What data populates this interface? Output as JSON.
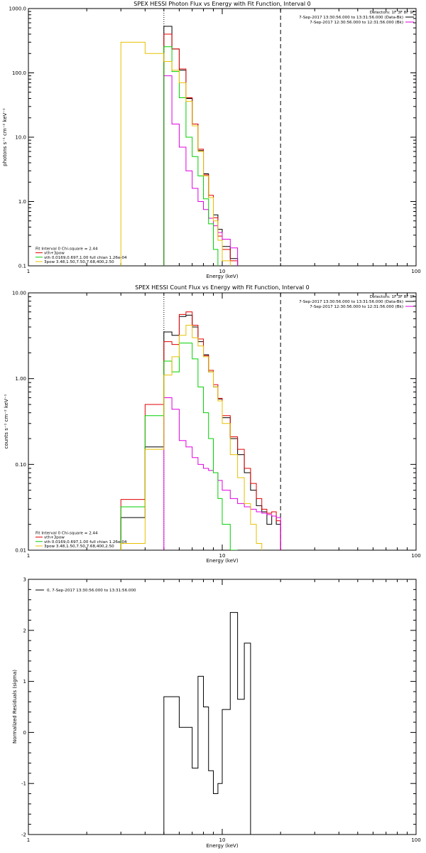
{
  "figure": {
    "colors": {
      "black": "#000000",
      "red": "#e00000",
      "magenta": "#e000e0",
      "green": "#00d000",
      "yellow": "#e8c000"
    }
  },
  "chart_data": [
    {
      "type": "step",
      "title": "SPEX HESSI Photon Flux vs Energy with Fit Function, Interval 0",
      "xlabel": "Energy (keV)",
      "ylabel": "photons s⁻¹ cm⁻² keV⁻¹",
      "xscale": "log",
      "yscale": "log",
      "xlim": [
        1,
        100
      ],
      "ylim": [
        0.1,
        1000
      ],
      "xticks": [
        1,
        10,
        100
      ],
      "xtick_labels": [
        "1",
        "10",
        "100"
      ],
      "yticks": [
        0.1,
        1,
        10,
        100,
        1000
      ],
      "ytick_labels": [
        "0.1",
        "1.0",
        "10.0",
        "100.0",
        "1000.0"
      ],
      "edges": [
        3,
        4,
        5,
        5.5,
        6,
        6.5,
        7,
        7.5,
        8,
        8.5,
        9,
        9.5,
        10,
        11,
        12,
        13,
        14,
        15,
        16,
        17,
        18,
        19,
        20
      ],
      "series": [
        {
          "color": "black",
          "values": [
            null,
            null,
            530,
            235,
            110,
            40,
            16,
            6.2,
            2.7,
            1.15,
            0.62,
            0.37,
            0.2,
            0.13
          ]
        },
        {
          "color": "red",
          "values": [
            null,
            null,
            400,
            235,
            115,
            41,
            16,
            6.5,
            2.6,
            1.25,
            0.56,
            0.29,
            0.18,
            0.12
          ]
        },
        {
          "color": "magenta",
          "values": [
            null,
            null,
            90,
            16,
            7,
            3,
            1.6,
            1,
            0.75,
            0.55,
            0.42,
            0.33,
            0.26,
            0.19
          ]
        },
        {
          "color": "green",
          "values": [
            null,
            null,
            255,
            105,
            41,
            10,
            5,
            2.5,
            1.1,
            0.45,
            0.18,
            0.08
          ]
        },
        {
          "color": "yellow",
          "values": [
            300,
            200,
            150,
            110,
            70,
            36,
            15,
            6,
            2.5,
            1.15,
            0.5,
            0.25,
            0.12,
            0.08
          ]
        }
      ],
      "vlines": [
        {
          "x": 5,
          "style": "dotted"
        },
        {
          "x": 20,
          "style": "dashed"
        }
      ],
      "legend_top": {
        "placement": "top-right",
        "header": "Detectors: 1F 3F 8F 9F",
        "entries": [
          {
            "label": "7-Sep-2017 13:30:56.000 to 13:31:56.000 (Data-Bk)",
            "color": "black"
          },
          {
            "label": "7-Sep-2017 12:30:56.000 to 12:31:56.000 (Bk)",
            "color": "magenta"
          }
        ]
      },
      "legend_bottom": {
        "placement": "bottom-left",
        "header": "Fit Interval 0   Chi-square = 2.44",
        "entries": [
          {
            "label": "vth+3pow",
            "color": "red"
          },
          {
            "label": "vth 0.0169,0.697,1.00  full chian 1.26e-04",
            "color": "green"
          },
          {
            "label": "3pow 3.48,1.50,7.50,7.68,400,2.50",
            "color": "yellow"
          }
        ]
      }
    },
    {
      "type": "step",
      "title": "SPEX HESSI Count Flux vs Energy with Fit Function, Interval 0",
      "xlabel": "Energy (keV)",
      "ylabel": "counts s⁻¹ cm⁻² keV⁻¹",
      "xscale": "log",
      "yscale": "log",
      "xlim": [
        1,
        100
      ],
      "ylim": [
        0.01,
        10
      ],
      "xticks": [
        1,
        10,
        100
      ],
      "xtick_labels": [
        "1",
        "10",
        "100"
      ],
      "yticks": [
        0.01,
        0.1,
        1,
        10
      ],
      "ytick_labels": [
        "0.01",
        "0.10",
        "1.00",
        "10.00"
      ],
      "edges": [
        3,
        4,
        5,
        5.5,
        6,
        6.5,
        7,
        7.5,
        8,
        8.5,
        9,
        9.5,
        10,
        11,
        12,
        13,
        14,
        15,
        16,
        17,
        18,
        19,
        20
      ],
      "series": [
        {
          "color": "black",
          "values": [
            0.024,
            0.16,
            3.5,
            3.2,
            5.3,
            5.5,
            4,
            2.7,
            1.9,
            1.2,
            0.8,
            0.58,
            0.35,
            0.2,
            0.13,
            0.08,
            0.05,
            0.033,
            0.028,
            0.02,
            0.025,
            0.02
          ]
        },
        {
          "color": "red",
          "values": [
            0.039,
            0.5,
            2.7,
            2.5,
            5.6,
            6.0,
            4.2,
            2.9,
            1.85,
            1.25,
            0.85,
            0.59,
            0.37,
            0.21,
            0.15,
            0.09,
            0.06,
            0.04,
            0.03,
            0.027,
            0.028,
            0.022
          ]
        },
        {
          "color": "magenta",
          "values": [
            null,
            null,
            0.6,
            0.44,
            0.19,
            0.16,
            0.12,
            0.1,
            0.09,
            0.085,
            0.08,
            0.065,
            0.05,
            0.04,
            0.035,
            0.032,
            0.03,
            0.028,
            0.027,
            0.026,
            0.025,
            0.024
          ]
        },
        {
          "color": "green",
          "values": [
            0.032,
            0.37,
            1.6,
            1.2,
            2.6,
            2.6,
            1.7,
            0.8,
            0.4,
            0.2,
            0.08,
            0.04,
            0.02,
            0.01
          ]
        },
        {
          "color": "yellow",
          "values": [
            0.012,
            0.15,
            1.1,
            1.8,
            3.2,
            4.2,
            3,
            2.4,
            1.8,
            1.2,
            0.8,
            0.55,
            0.3,
            0.13,
            0.07,
            0.035,
            0.02,
            0.012
          ]
        }
      ],
      "vlines": [
        {
          "x": 5,
          "style": "dotted"
        },
        {
          "x": 20,
          "style": "dashed"
        }
      ],
      "legend_top": {
        "placement": "top-right",
        "header": "Detectors: 1F 3F 8F 9F",
        "entries": [
          {
            "label": "7-Sep-2017 13:30:56.000 to 13:31:56.000 (Data-Bk)",
            "color": "black"
          },
          {
            "label": "7-Sep-2017 12:30:56.000 to 12:31:56.000 (Bk)",
            "color": "magenta"
          }
        ]
      },
      "legend_bottom": {
        "placement": "bottom-left",
        "header": "Fit Interval 0   Chi-square = 2.44",
        "entries": [
          {
            "label": "vth+3pow",
            "color": "red"
          },
          {
            "label": "vth 0.0169,0.697,1.00  full chian 1.26e-04",
            "color": "green"
          },
          {
            "label": "3pow 3.48,1.50,7.50,7.68,400,2.50",
            "color": "yellow"
          }
        ]
      }
    },
    {
      "type": "step",
      "title": "",
      "xlabel": "Energy (keV)",
      "ylabel": "Normalized Residuals (sigma)",
      "xscale": "log",
      "yscale": "linear",
      "xlim": [
        1,
        100
      ],
      "ylim": [
        -2,
        3
      ],
      "xticks": [
        1,
        10,
        100
      ],
      "xtick_labels": [
        "1",
        "10",
        "100"
      ],
      "yticks": [
        -2,
        -1,
        0,
        1,
        2,
        3
      ],
      "ytick_labels": [
        "-2",
        "-1",
        "0",
        "1",
        "2",
        "3"
      ],
      "edges": [
        5,
        5.5,
        6,
        6.5,
        7,
        7.5,
        8,
        8.5,
        9,
        9.5,
        10,
        11,
        12,
        13,
        14,
        15,
        16,
        17,
        18,
        19,
        20
      ],
      "series": [
        {
          "color": "black",
          "values": [
            0.7,
            0.7,
            0.1,
            0.1,
            -0.7,
            1.1,
            0.5,
            -0.75,
            -1.2,
            -1.0,
            0.45,
            2.35,
            0.65,
            1.75
          ]
        }
      ],
      "legend_top": {
        "placement": "top-left",
        "header": "",
        "entries": [
          {
            "label": "0,  7-Sep-2017 13:30:56.000 to 13:31:56.000",
            "color": "black"
          }
        ]
      }
    }
  ]
}
